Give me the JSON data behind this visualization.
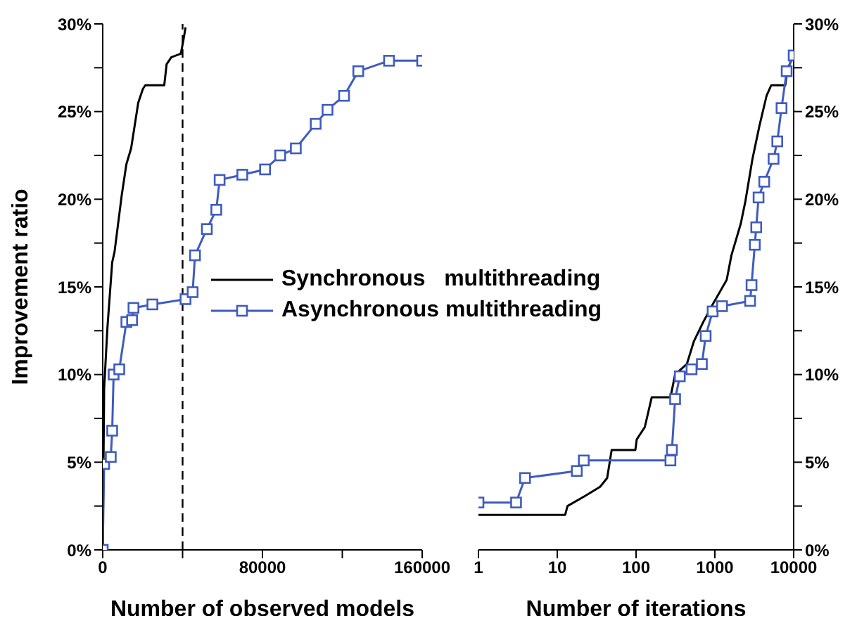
{
  "chart_data": [
    {
      "type": "line",
      "xlabel": "Number of observed models",
      "ylabel": "Improvement ratio",
      "xlim": [
        0,
        160000
      ],
      "xticks": [
        0,
        {
          "value": 40000,
          "label": null
        },
        80000,
        {
          "value": 120000,
          "label": null
        },
        160000
      ],
      "ylim": [
        0,
        30
      ],
      "yticks": [
        {
          "value": 0,
          "label": "0%"
        },
        {
          "value": 2.5,
          "label": null
        },
        {
          "value": 5,
          "label": "5%"
        },
        {
          "value": 7.5,
          "label": null
        },
        {
          "value": 10,
          "label": "10%"
        },
        {
          "value": 12.5,
          "label": null
        },
        {
          "value": 15,
          "label": "15%"
        },
        {
          "value": 17.5,
          "label": null
        },
        {
          "value": 20,
          "label": "20%"
        },
        {
          "value": 22.5,
          "label": null
        },
        {
          "value": 25,
          "label": "25%"
        },
        {
          "value": 27.5,
          "label": null
        },
        {
          "value": 30,
          "label": "30%"
        }
      ],
      "grid": false,
      "legend": "right",
      "ref_lines": [
        {
          "axis": "x",
          "value": 40000,
          "color": "#000000",
          "line_style": "dashed"
        }
      ],
      "series": [
        {
          "name": "Synchronous   multithreading",
          "color": "#000000",
          "marker": "none",
          "x": [
            0,
            711,
            2370,
            4740,
            5926,
            9481,
            11852,
            14222,
            17778,
            20148,
            21333,
            30815,
            32000,
            34370,
            39111,
            40296,
            41481
          ],
          "values": [
            0,
            9.2,
            12.7,
            16.4,
            17,
            20.2,
            22,
            22.9,
            25.5,
            26.3,
            26.5,
            26.5,
            27.7,
            28.1,
            28.3,
            29,
            29.8
          ]
        },
        {
          "name": "Asynchronous multithreading",
          "color": "#3f5bbf",
          "marker": "square",
          "x": [
            0,
            711,
            4030,
            4741,
            5452,
            8296,
            11852,
            14696,
            15407,
            24889,
            41481,
            45037,
            46222,
            52148,
            56889,
            58548,
            69926,
            81304,
            88889,
            96711,
            106667,
            112593,
            120889,
            128000,
            143407,
            160000
          ],
          "values": [
            0,
            4.9,
            5.3,
            6.8,
            10,
            10.3,
            13,
            13.1,
            13.8,
            14,
            14.3,
            14.7,
            16.8,
            18.3,
            19.4,
            21.1,
            21.4,
            21.7,
            22.5,
            22.9,
            24.3,
            25.1,
            25.9,
            27.3,
            27.9,
            27.9
          ]
        }
      ]
    },
    {
      "type": "line",
      "xlabel": "Number of iterations",
      "log": "x",
      "xlim": [
        1,
        10000
      ],
      "xticks": [
        1,
        10,
        100,
        1000,
        10000
      ],
      "ylim": [
        0,
        30
      ],
      "yticks": [
        {
          "value": 0,
          "label": "0%"
        },
        {
          "value": 2.5,
          "label": null
        },
        {
          "value": 5,
          "label": "5%"
        },
        {
          "value": 7.5,
          "label": null
        },
        {
          "value": 10,
          "label": "10%"
        },
        {
          "value": 12.5,
          "label": null
        },
        {
          "value": 15,
          "label": "15%"
        },
        {
          "value": 17.5,
          "label": null
        },
        {
          "value": 20,
          "label": "20%"
        },
        {
          "value": 22.5,
          "label": null
        },
        {
          "value": 25,
          "label": "25%"
        },
        {
          "value": 27.5,
          "label": null
        },
        {
          "value": 30,
          "label": "30%"
        }
      ],
      "grid": false,
      "series": [
        {
          "color": "#000000",
          "marker": "none",
          "x": [
            1,
            12.6,
            13.5,
            23,
            35,
            43,
            49,
            98,
            102,
            129,
            158,
            273,
            313,
            441,
            542,
            713,
            937,
            1413,
            1622,
            2130,
            2443,
            3000,
            3683,
            4529,
            5190,
            7816,
            8375,
            10000
          ],
          "values": [
            2,
            2,
            2.5,
            3.1,
            3.6,
            4.1,
            5.7,
            5.7,
            6.3,
            7,
            8.7,
            8.7,
            10,
            10.6,
            11.9,
            13,
            14,
            15.4,
            16.8,
            18.6,
            19.9,
            22.3,
            24.2,
            25.9,
            26.5,
            26.5,
            27.4,
            28.3
          ]
        },
        {
          "color": "#3f5bbf",
          "marker": "square",
          "x": [
            1,
            3,
            3.9,
            17.7,
            21.7,
            273,
            285,
            313,
            359,
            506,
            684,
            764,
            937,
            1233,
            2800,
            2918,
            3212,
            3350,
            3584,
            4229,
            5556,
            6195,
            7015,
            8147,
            10000
          ],
          "values": [
            2.7,
            2.7,
            4.1,
            4.5,
            5.1,
            5.1,
            5.7,
            8.6,
            9.9,
            10.3,
            10.6,
            12.2,
            13.6,
            13.9,
            14.2,
            15.1,
            17.4,
            18.4,
            20.1,
            21,
            22.3,
            23.3,
            25.2,
            27.3,
            28.2
          ]
        }
      ]
    }
  ]
}
